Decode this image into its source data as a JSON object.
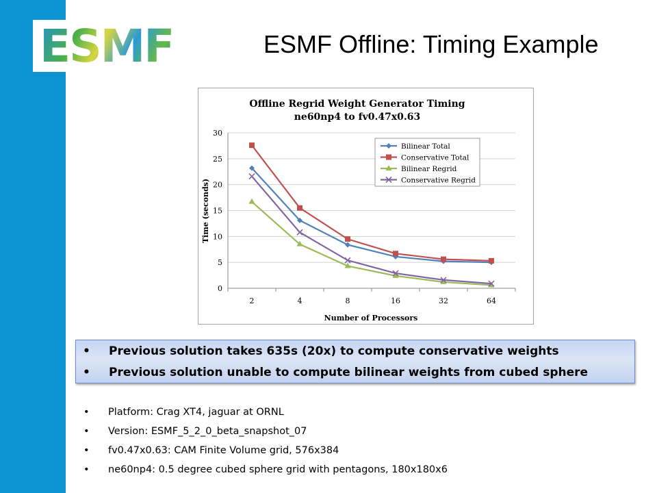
{
  "slide": {
    "title": "ESMF Offline:  Timing Example",
    "logo_text": "ESMF",
    "colors": {
      "sidebar": "#0c94d0",
      "callout_fill": "#c6d5f2",
      "callout_border": "#6f8fc7"
    }
  },
  "callout": {
    "items": [
      "Previous solution takes 635s (20x) to compute conservative weights",
      "Previous solution unable to compute bilinear weights from cubed sphere"
    ]
  },
  "details": {
    "items": [
      "Platform:  Crag XT4, jaguar at ORNL",
      "Version: ESMF_5_2_0_beta_snapshot_07",
      "fv0.47x0.63: CAM Finite Volume grid, 576x384",
      "ne60np4: 0.5 degree cubed sphere grid with pentagons, 180x180x6"
    ],
    "bullet_glyph": "•"
  },
  "chart_data": {
    "type": "line",
    "title": "Offline Regrid Weight Generator Timing",
    "subtitle": "ne60np4 to fv0.47x0.63",
    "xlabel": "Number of Processors",
    "ylabel": "Time (seconds)",
    "categories": [
      "2",
      "4",
      "8",
      "16",
      "32",
      "64"
    ],
    "ylim": [
      0,
      30
    ],
    "yticks": [
      0,
      5,
      10,
      15,
      20,
      25,
      30
    ],
    "grid": "horizontal",
    "legend_position": "top-right",
    "series": [
      {
        "name": "Bilinear Total",
        "color": "#4f81bd",
        "marker": "diamond",
        "values": [
          23.2,
          13.1,
          8.4,
          6.1,
          5.2,
          5.0
        ]
      },
      {
        "name": "Conservative Total",
        "color": "#c0504d",
        "marker": "square",
        "values": [
          27.6,
          15.5,
          9.5,
          6.7,
          5.6,
          5.3
        ]
      },
      {
        "name": "Bilinear Regrid",
        "color": "#9bbb59",
        "marker": "triangle",
        "values": [
          16.7,
          8.5,
          4.3,
          2.4,
          1.2,
          0.6
        ]
      },
      {
        "name": "Conservative Regrid",
        "color": "#8064a2",
        "marker": "x",
        "values": [
          21.6,
          10.8,
          5.4,
          2.9,
          1.6,
          0.9
        ]
      }
    ]
  }
}
